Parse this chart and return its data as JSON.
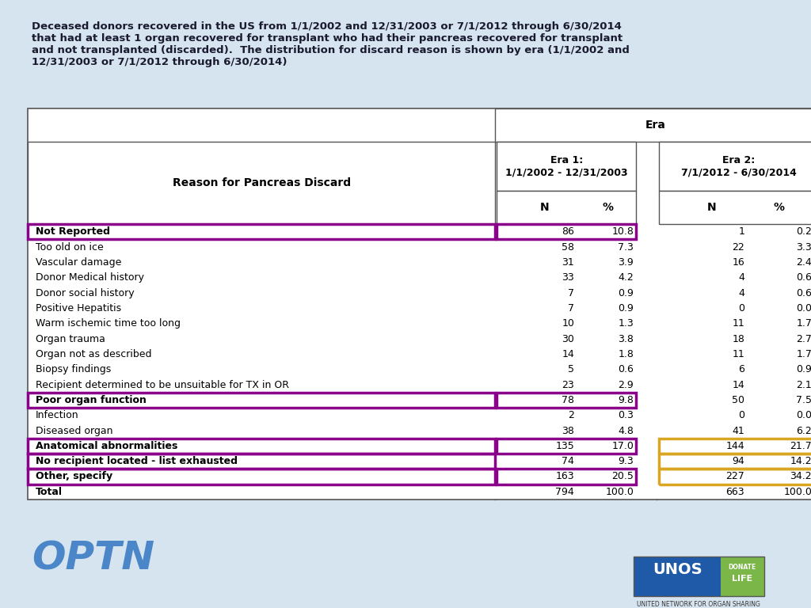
{
  "title": "Deceased donors recovered in the US from 1/1/2002 and 12/31/2003 or 7/1/2012 through 6/30/2014\nthat had at least 1 organ recovered for transplant who had their pancreas recovered for transplant\nand not transplanted (discarded).  The distribution for discard reason is shown by era (1/1/2002 and\n12/31/2003 or 7/1/2012 through 6/30/2014)",
  "col_header_1": "Reason for Pancreas Discard",
  "col_header_era": "Era",
  "col_header_era1_line1": "Era 1:",
  "col_header_era1_line2": "1/1/2002 - 12/31/2003",
  "col_header_era2_line1": "Era 2:",
  "col_header_era2_line2": "7/1/2012 - 6/30/2014",
  "col_header_N": "N",
  "col_header_pct": "%",
  "rows": [
    {
      "reason": "Not Reported",
      "n1": "86",
      "p1": "10.8",
      "n2": "1",
      "p2": "0.2",
      "bold": true,
      "box_left_purple": true,
      "box_era1_purple": true,
      "box_era2_none": true
    },
    {
      "reason": "Too old on ice",
      "n1": "58",
      "p1": "7.3",
      "n2": "22",
      "p2": "3.3",
      "bold": false,
      "box_left_purple": false,
      "box_era1_purple": false,
      "box_era2_none": true
    },
    {
      "reason": "Vascular damage",
      "n1": "31",
      "p1": "3.9",
      "n2": "16",
      "p2": "2.4",
      "bold": false,
      "box_left_purple": false,
      "box_era1_purple": false,
      "box_era2_none": true
    },
    {
      "reason": "Donor Medical history",
      "n1": "33",
      "p1": "4.2",
      "n2": "4",
      "p2": "0.6",
      "bold": false,
      "box_left_purple": false,
      "box_era1_purple": false,
      "box_era2_none": true
    },
    {
      "reason": "Donor social history",
      "n1": "7",
      "p1": "0.9",
      "n2": "4",
      "p2": "0.6",
      "bold": false,
      "box_left_purple": false,
      "box_era1_purple": false,
      "box_era2_none": true
    },
    {
      "reason": "Positive Hepatitis",
      "n1": "7",
      "p1": "0.9",
      "n2": "0",
      "p2": "0.0",
      "bold": false,
      "box_left_purple": false,
      "box_era1_purple": false,
      "box_era2_none": true
    },
    {
      "reason": "Warm ischemic time too long",
      "n1": "10",
      "p1": "1.3",
      "n2": "11",
      "p2": "1.7",
      "bold": false,
      "box_left_purple": false,
      "box_era1_purple": false,
      "box_era2_none": true
    },
    {
      "reason": "Organ trauma",
      "n1": "30",
      "p1": "3.8",
      "n2": "18",
      "p2": "2.7",
      "bold": false,
      "box_left_purple": false,
      "box_era1_purple": false,
      "box_era2_none": true
    },
    {
      "reason": "Organ not as described",
      "n1": "14",
      "p1": "1.8",
      "n2": "11",
      "p2": "1.7",
      "bold": false,
      "box_left_purple": false,
      "box_era1_purple": false,
      "box_era2_none": true
    },
    {
      "reason": "Biopsy findings",
      "n1": "5",
      "p1": "0.6",
      "n2": "6",
      "p2": "0.9",
      "bold": false,
      "box_left_purple": false,
      "box_era1_purple": false,
      "box_era2_none": true
    },
    {
      "reason": "Recipient determined to be unsuitable for TX in OR",
      "n1": "23",
      "p1": "2.9",
      "n2": "14",
      "p2": "2.1",
      "bold": false,
      "box_left_purple": false,
      "box_era1_purple": false,
      "box_era2_none": true
    },
    {
      "reason": "Poor organ function",
      "n1": "78",
      "p1": "9.8",
      "n2": "50",
      "p2": "7.5",
      "bold": true,
      "box_left_purple": true,
      "box_era1_purple": true,
      "box_era2_none": true
    },
    {
      "reason": "Infection",
      "n1": "2",
      "p1": "0.3",
      "n2": "0",
      "p2": "0.0",
      "bold": false,
      "box_left_purple": false,
      "box_era1_purple": false,
      "box_era2_none": true
    },
    {
      "reason": "Diseased organ",
      "n1": "38",
      "p1": "4.8",
      "n2": "41",
      "p2": "6.2",
      "bold": false,
      "box_left_purple": false,
      "box_era1_purple": false,
      "box_era2_none": true
    },
    {
      "reason": "Anatomical abnormalities",
      "n1": "135",
      "p1": "17.0",
      "n2": "144",
      "p2": "21.7",
      "bold": true,
      "box_left_purple": true,
      "box_era1_purple": true,
      "box_era2_gold": true
    },
    {
      "reason": "No recipient located - list exhausted",
      "n1": "74",
      "p1": "9.3",
      "n2": "94",
      "p2": "14.2",
      "bold": true,
      "box_left_purple": true,
      "box_era1_purple": false,
      "box_era2_gold": true
    },
    {
      "reason": "Other, specify",
      "n1": "163",
      "p1": "20.5",
      "n2": "227",
      "p2": "34.2",
      "bold": true,
      "box_left_purple": true,
      "box_era1_purple": true,
      "box_era2_gold": true
    }
  ],
  "total_row": {
    "reason": "Total",
    "n1": "794",
    "p1": "100.0",
    "n2": "663",
    "p2": "100.0"
  },
  "bg_color": "#d6e4f0",
  "table_bg": "#ffffff",
  "purple_color": "#8B008B",
  "gold_color": "#DAA520",
  "text_color": "#1a1a2e",
  "header_text_color": "#000000",
  "optn_color": "#4a86c8",
  "title_color": "#1a1a2e"
}
